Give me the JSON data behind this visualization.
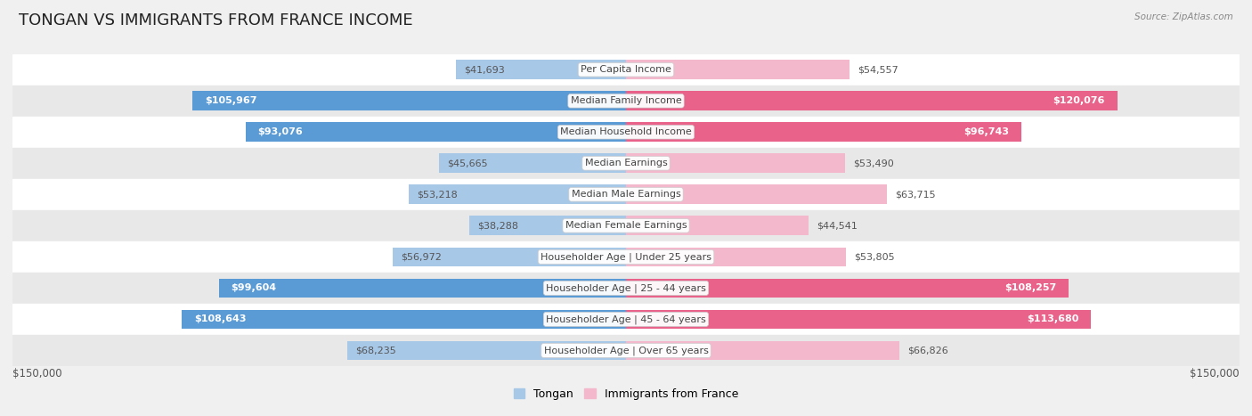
{
  "title": "TONGAN VS IMMIGRANTS FROM FRANCE INCOME",
  "source": "Source: ZipAtlas.com",
  "categories": [
    "Per Capita Income",
    "Median Family Income",
    "Median Household Income",
    "Median Earnings",
    "Median Male Earnings",
    "Median Female Earnings",
    "Householder Age | Under 25 years",
    "Householder Age | 25 - 44 years",
    "Householder Age | 45 - 64 years",
    "Householder Age | Over 65 years"
  ],
  "tongan_values": [
    41693,
    105967,
    93076,
    45665,
    53218,
    38288,
    56972,
    99604,
    108643,
    68235
  ],
  "france_values": [
    54557,
    120076,
    96743,
    53490,
    63715,
    44541,
    53805,
    108257,
    113680,
    66826
  ],
  "tongan_labels": [
    "$41,693",
    "$105,967",
    "$93,076",
    "$45,665",
    "$53,218",
    "$38,288",
    "$56,972",
    "$99,604",
    "$108,643",
    "$68,235"
  ],
  "france_labels": [
    "$54,557",
    "$120,076",
    "$96,743",
    "$53,490",
    "$63,715",
    "$44,541",
    "$53,805",
    "$108,257",
    "$113,680",
    "$66,826"
  ],
  "tongan_color_light": "#a8c8e8",
  "tongan_color_dark": "#5b9bd5",
  "france_color_light": "#f4b8cc",
  "france_color_dark": "#e8628a",
  "max_value": 150000,
  "x_label_left": "$150,000",
  "x_label_right": "$150,000",
  "legend_tongan": "Tongan",
  "legend_france": "Immigrants from France",
  "background_color": "#f0f0f0",
  "row_bg_white": "#ffffff",
  "row_bg_gray": "#e8e8e8",
  "bar_height": 0.62,
  "title_fontsize": 13,
  "label_fontsize": 8,
  "category_fontsize": 8,
  "threshold_dark_label": 70000,
  "threshold_outside_label": 30000
}
